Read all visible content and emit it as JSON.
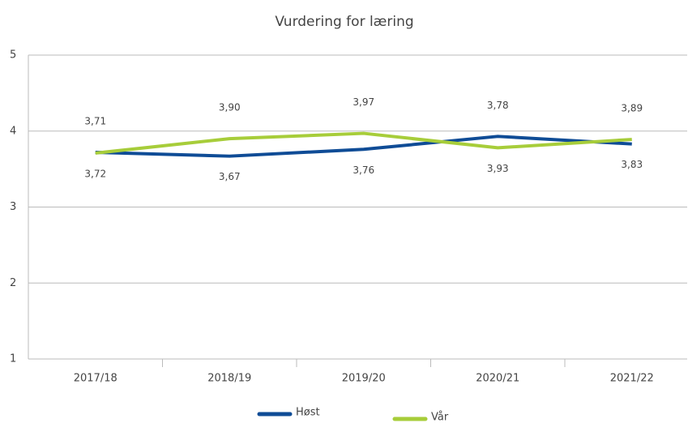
{
  "chart_data": {
    "type": "line",
    "title": "Vurdering for læring",
    "categories": [
      "2017/18",
      "2018/19",
      "2019/20",
      "2020/21",
      "2021/22"
    ],
    "series": [
      {
        "name": "Høst",
        "color": "#0f4c96",
        "values": [
          3.72,
          3.67,
          3.76,
          3.93,
          3.83
        ],
        "value_labels": [
          "3,72",
          "3,67",
          "3,76",
          "3,93",
          "3,83"
        ]
      },
      {
        "name": "Vår",
        "color": "#a7cd3a",
        "values": [
          3.71,
          3.9,
          3.97,
          3.78,
          3.89
        ],
        "value_labels": [
          "3,71",
          "3,90",
          "3,97",
          "3,78",
          "3,89"
        ]
      }
    ],
    "ylim": [
      1,
      5
    ],
    "yticks": [
      1,
      2,
      3,
      4,
      5
    ],
    "grid": true
  }
}
